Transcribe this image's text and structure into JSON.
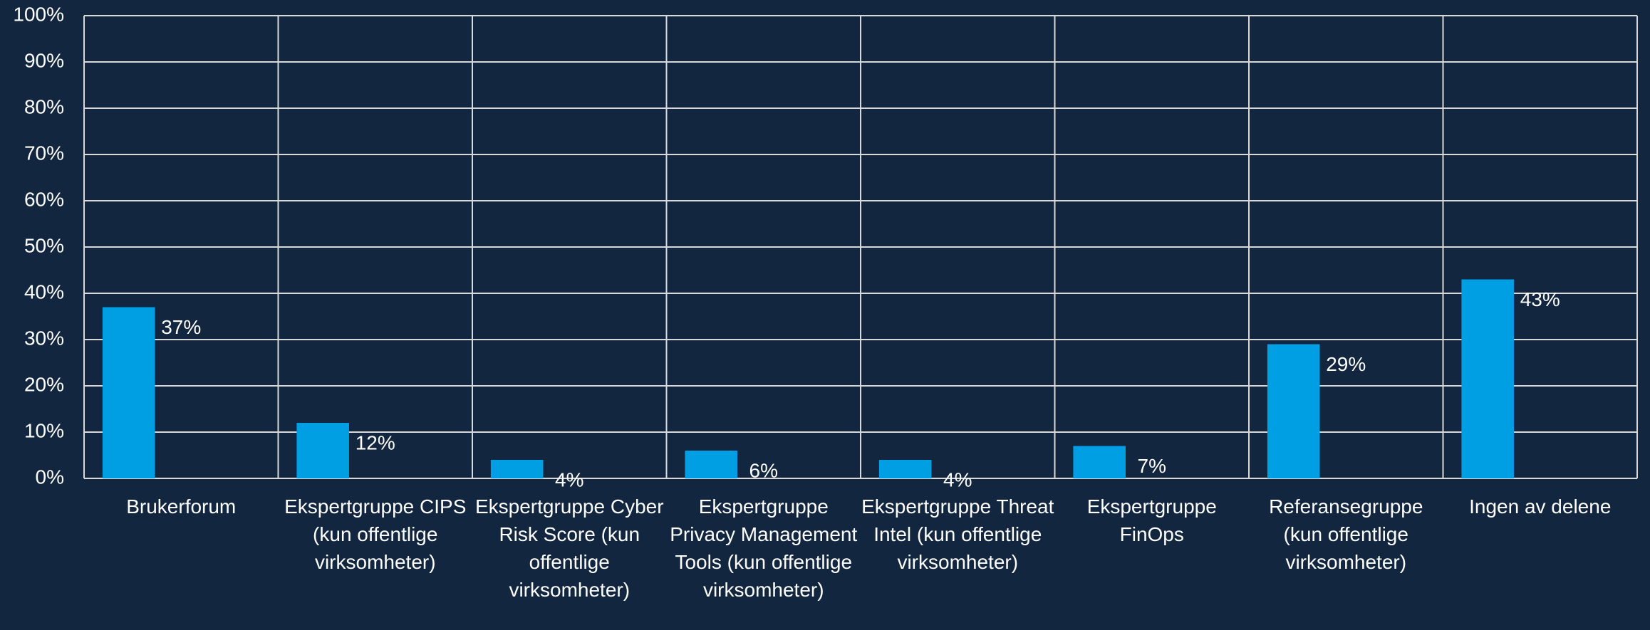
{
  "chart_data": {
    "type": "bar",
    "categories": [
      "Brukerforum",
      "Ekspertgruppe CIPS (kun offentlige virksomheter)",
      "Ekspertgruppe Cyber Risk Score (kun offentlige virksomheter)",
      "Ekspertgruppe Privacy Management Tools (kun offentlige virksomheter)",
      "Ekspertgruppe Threat Intel (kun offentlige virksomheter)",
      "Ekspertgruppe FinOps",
      "Referansegruppe (kun offentlige virksomheter)",
      "Ingen av delene"
    ],
    "values": [
      37,
      12,
      4,
      6,
      4,
      7,
      29,
      43
    ],
    "value_labels": [
      "37%",
      "12%",
      "4%",
      "6%",
      "4%",
      "7%",
      "29%",
      "43%"
    ],
    "color": "#009fe3",
    "ylim": [
      0,
      100
    ],
    "yticks": [
      {
        "value": 0,
        "label": "0%"
      },
      {
        "value": 10,
        "label": "10%"
      },
      {
        "value": 20,
        "label": "20%"
      },
      {
        "value": 30,
        "label": "30%"
      },
      {
        "value": 40,
        "label": "40%"
      },
      {
        "value": 50,
        "label": "50%"
      },
      {
        "value": 60,
        "label": "60%"
      },
      {
        "value": 70,
        "label": "70%"
      },
      {
        "value": 80,
        "label": "80%"
      },
      {
        "value": 90,
        "label": "90%"
      },
      {
        "value": 100,
        "label": "100%"
      }
    ],
    "grid": true
  }
}
